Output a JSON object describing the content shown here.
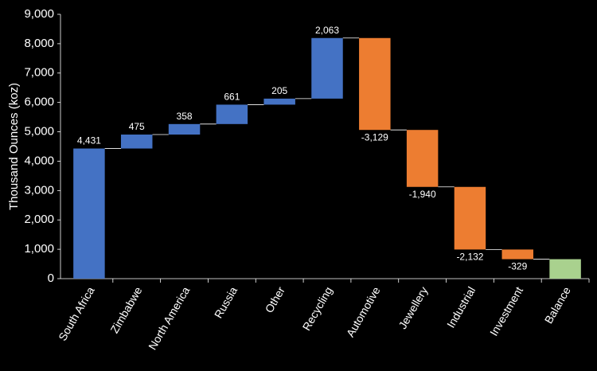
{
  "chart_data": {
    "type": "waterfall",
    "y_axis_label": "Thousand Ounces (koz)",
    "categories": [
      "South Africa",
      "Zimbabwe",
      "North America",
      "Russia",
      "Other",
      "Recycling",
      "Automotive",
      "Jewellery",
      "Industrial",
      "Investment",
      "Balance"
    ],
    "values": [
      4431,
      475,
      358,
      661,
      205,
      2063,
      -3129,
      -1940,
      -2132,
      -329,
      663
    ],
    "value_labels": [
      "4,431",
      "475",
      "358",
      "661",
      "205",
      "2,063",
      "-3,129",
      "-1,940",
      "-2,132",
      "-329",
      null
    ],
    "measures": [
      "relative",
      "relative",
      "relative",
      "relative",
      "relative",
      "relative",
      "relative",
      "relative",
      "relative",
      "relative",
      "total"
    ],
    "colors": {
      "increase": "#4472c4",
      "decrease": "#ed7d31",
      "total": "#a9d18e"
    },
    "ylim": [
      0,
      9000
    ],
    "yticks": [
      0,
      {
        "value": 1000,
        "label": "1,000"
      },
      {
        "value": 2000,
        "label": "2,000"
      },
      {
        "value": 3000,
        "label": "3,000"
      },
      {
        "value": 4000,
        "label": "4,000"
      },
      {
        "value": 5000,
        "label": "5,000"
      },
      {
        "value": 6000,
        "label": "6,000"
      },
      {
        "value": 7000,
        "label": "7,000"
      },
      {
        "value": 8000,
        "label": "8,000"
      },
      {
        "value": 9000,
        "label": "9,000"
      }
    ],
    "grid": false
  }
}
